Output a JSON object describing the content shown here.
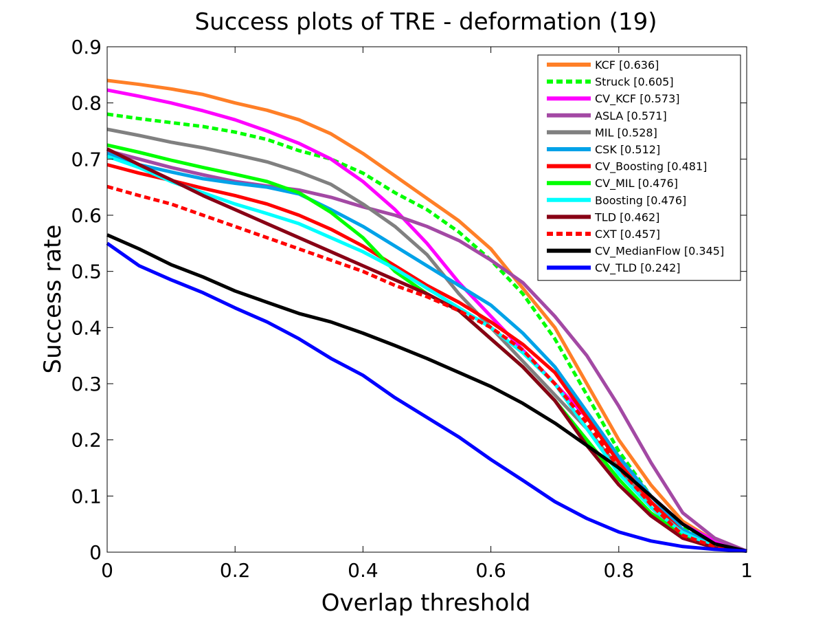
{
  "chart_data": {
    "type": "line",
    "title": "Success plots of TRE - deformation (19)",
    "xlabel": "Overlap threshold",
    "ylabel": "Success rate",
    "xlim": [
      0,
      1
    ],
    "ylim": [
      0,
      0.9
    ],
    "xticks": [
      "0",
      "0.2",
      "0.4",
      "0.6",
      "0.8",
      "1"
    ],
    "yticks": [
      "0",
      "0.1",
      "0.2",
      "0.3",
      "0.4",
      "0.5",
      "0.6",
      "0.7",
      "0.8",
      "0.9"
    ],
    "grid": false,
    "legend_position": "top-right",
    "x": [
      0,
      0.05,
      0.1,
      0.15,
      0.2,
      0.25,
      0.3,
      0.35,
      0.4,
      0.45,
      0.5,
      0.55,
      0.6,
      0.65,
      0.7,
      0.75,
      0.8,
      0.85,
      0.9,
      0.95,
      1.0
    ],
    "series": [
      {
        "name": "KCF [0.636]",
        "color": "#ff7f27",
        "dashed": false,
        "values": [
          0.84,
          0.833,
          0.825,
          0.815,
          0.8,
          0.787,
          0.77,
          0.745,
          0.71,
          0.67,
          0.63,
          0.59,
          0.54,
          0.47,
          0.4,
          0.3,
          0.2,
          0.12,
          0.055,
          0.02,
          0.002
        ]
      },
      {
        "name": "Struck [0.605]",
        "color": "#00ff00",
        "dashed": true,
        "values": [
          0.78,
          0.772,
          0.765,
          0.758,
          0.748,
          0.735,
          0.715,
          0.7,
          0.675,
          0.64,
          0.61,
          0.57,
          0.52,
          0.46,
          0.38,
          0.28,
          0.18,
          0.1,
          0.045,
          0.015,
          0.002
        ]
      },
      {
        "name": "CV_KCF [0.573]",
        "color": "#ff00ff",
        "dashed": false,
        "values": [
          0.823,
          0.812,
          0.8,
          0.786,
          0.77,
          0.75,
          0.728,
          0.7,
          0.66,
          0.61,
          0.55,
          0.48,
          0.42,
          0.36,
          0.3,
          0.24,
          0.17,
          0.1,
          0.05,
          0.02,
          0.002
        ]
      },
      {
        "name": "ASLA [0.571]",
        "color": "#a349a4",
        "dashed": false,
        "values": [
          0.715,
          0.7,
          0.685,
          0.672,
          0.66,
          0.652,
          0.645,
          0.632,
          0.615,
          0.6,
          0.58,
          0.555,
          0.52,
          0.48,
          0.42,
          0.35,
          0.26,
          0.16,
          0.07,
          0.025,
          0.002
        ]
      },
      {
        "name": "MIL [0.528]",
        "color": "#808080",
        "dashed": false,
        "values": [
          0.753,
          0.742,
          0.73,
          0.72,
          0.708,
          0.695,
          0.677,
          0.655,
          0.62,
          0.58,
          0.53,
          0.46,
          0.4,
          0.34,
          0.28,
          0.22,
          0.15,
          0.08,
          0.03,
          0.01,
          0.002
        ]
      },
      {
        "name": "CSK [0.512]",
        "color": "#00a2e8",
        "dashed": false,
        "values": [
          0.71,
          0.69,
          0.677,
          0.665,
          0.657,
          0.65,
          0.638,
          0.61,
          0.58,
          0.545,
          0.51,
          0.475,
          0.44,
          0.39,
          0.33,
          0.25,
          0.17,
          0.1,
          0.04,
          0.012,
          0.002
        ]
      },
      {
        "name": "CV_Boosting [0.481]",
        "color": "#ff0000",
        "dashed": false,
        "values": [
          0.69,
          0.675,
          0.662,
          0.648,
          0.635,
          0.62,
          0.6,
          0.575,
          0.545,
          0.51,
          0.475,
          0.445,
          0.41,
          0.37,
          0.32,
          0.24,
          0.16,
          0.09,
          0.035,
          0.01,
          0.002
        ]
      },
      {
        "name": "CV_MIL [0.476]",
        "color": "#00ff00",
        "dashed": false,
        "values": [
          0.725,
          0.712,
          0.698,
          0.685,
          0.673,
          0.66,
          0.64,
          0.605,
          0.56,
          0.5,
          0.46,
          0.43,
          0.38,
          0.33,
          0.27,
          0.2,
          0.13,
          0.07,
          0.03,
          0.01,
          0.002
        ]
      },
      {
        "name": "Boosting [0.476]",
        "color": "#00ffff",
        "dashed": false,
        "values": [
          0.705,
          0.685,
          0.66,
          0.64,
          0.62,
          0.603,
          0.585,
          0.56,
          0.535,
          0.505,
          0.47,
          0.435,
          0.4,
          0.355,
          0.3,
          0.22,
          0.14,
          0.08,
          0.035,
          0.01,
          0.002
        ]
      },
      {
        "name": "TLD [0.462]",
        "color": "#880015",
        "dashed": false,
        "values": [
          0.718,
          0.69,
          0.663,
          0.635,
          0.61,
          0.585,
          0.56,
          0.535,
          0.51,
          0.485,
          0.46,
          0.43,
          0.38,
          0.33,
          0.27,
          0.19,
          0.12,
          0.065,
          0.025,
          0.008,
          0.002
        ]
      },
      {
        "name": "CXT [0.457]",
        "color": "#ff0000",
        "dashed": true,
        "values": [
          0.651,
          0.635,
          0.62,
          0.6,
          0.58,
          0.56,
          0.54,
          0.52,
          0.5,
          0.475,
          0.455,
          0.43,
          0.4,
          0.36,
          0.3,
          0.23,
          0.15,
          0.085,
          0.03,
          0.01,
          0.002
        ]
      },
      {
        "name": "CV_MedianFlow [0.345]",
        "color": "#000000",
        "dashed": false,
        "values": [
          0.565,
          0.54,
          0.512,
          0.49,
          0.465,
          0.445,
          0.425,
          0.41,
          0.39,
          0.368,
          0.345,
          0.32,
          0.295,
          0.265,
          0.23,
          0.19,
          0.15,
          0.1,
          0.05,
          0.015,
          0.002
        ]
      },
      {
        "name": "CV_TLD [0.242]",
        "color": "#0000ff",
        "dashed": false,
        "values": [
          0.55,
          0.51,
          0.485,
          0.462,
          0.435,
          0.41,
          0.38,
          0.345,
          0.315,
          0.275,
          0.24,
          0.205,
          0.165,
          0.128,
          0.09,
          0.06,
          0.036,
          0.02,
          0.01,
          0.005,
          0.002
        ]
      }
    ]
  }
}
